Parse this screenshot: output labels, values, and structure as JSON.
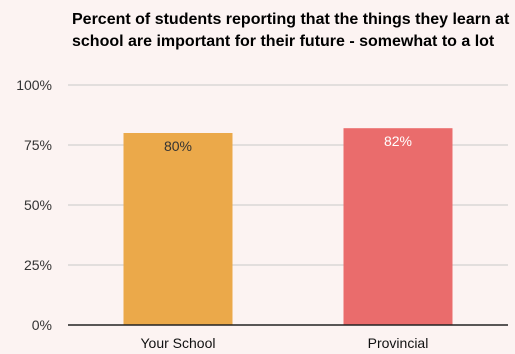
{
  "chart_data": {
    "type": "bar",
    "title": "Percent of students reporting that the things they learn at school are important for their future - somewhat to a lot",
    "categories": [
      "Your School",
      "Provincial"
    ],
    "values": [
      80,
      82
    ],
    "data_labels": [
      "80%",
      "82%"
    ],
    "colors": [
      "#eba94a",
      "#ea6c6c"
    ],
    "data_label_colors": [
      "#333333",
      "#ffffff"
    ],
    "y_ticks": [
      0,
      25,
      50,
      75,
      100
    ],
    "y_tick_labels": [
      "0%",
      "25%",
      "50%",
      "75%",
      "100%"
    ],
    "ylim": [
      0,
      100
    ],
    "xlabel": "",
    "ylabel": "",
    "grid": true,
    "legend": "none"
  }
}
